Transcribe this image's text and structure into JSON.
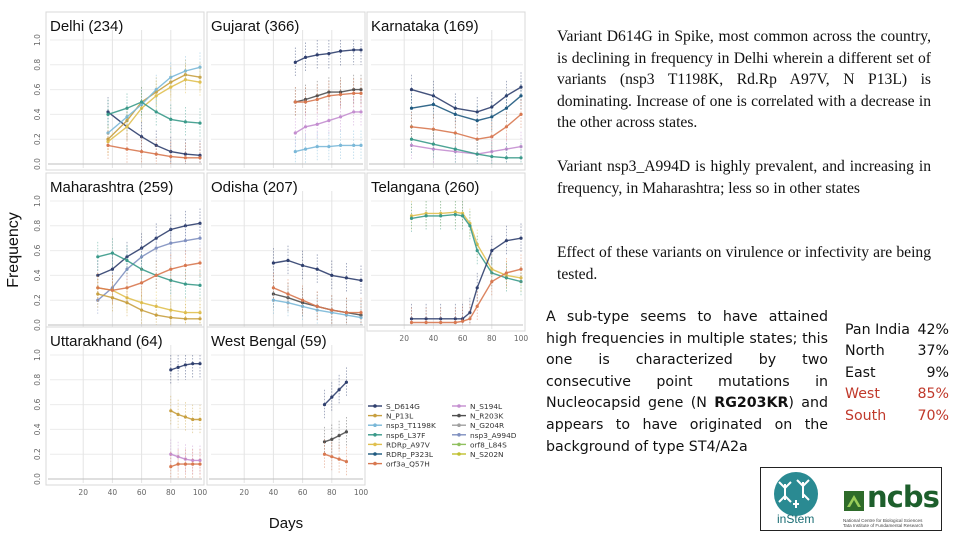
{
  "chart_data": {
    "type": "line",
    "ylabel": "Frequency",
    "xlabel": "Days",
    "ylim": [
      0,
      1.0
    ],
    "xlim": [
      0,
      100
    ],
    "yticks": [
      "0.0",
      "0.2",
      "0.4",
      "0.6",
      "0.8",
      "1.0"
    ],
    "xticks": [
      "20",
      "40",
      "60",
      "80",
      "100"
    ],
    "panels": [
      {
        "title": "Delhi (234)"
      },
      {
        "title": "Gujarat (366)"
      },
      {
        "title": "Karnataka (169)"
      },
      {
        "title": "Maharashtra (259)"
      },
      {
        "title": "Odisha (207)"
      },
      {
        "title": "Telangana (260)"
      },
      {
        "title": "Uttarakhand (64)"
      },
      {
        "title": "West Bengal (59)"
      }
    ],
    "legend_placement": "bottom-right of plot grid",
    "series": [
      {
        "name": "S_D614G",
        "color": "#2f3f6e"
      },
      {
        "name": "N_P13L",
        "color": "#c8a040"
      },
      {
        "name": "nsp3_T1198K",
        "color": "#7ab8d8"
      },
      {
        "name": "nsp6_L37F",
        "color": "#3a9a8a"
      },
      {
        "name": "RDRp_A97V",
        "color": "#e0c050"
      },
      {
        "name": "RDRp_P323L",
        "color": "#1f5a80"
      },
      {
        "name": "orf3a_Q57H",
        "color": "#d87850"
      },
      {
        "name": "N_S194L",
        "color": "#c48ed0"
      },
      {
        "name": "N_R203K",
        "color": "#505050"
      },
      {
        "name": "N_G204R",
        "color": "#a0a0a0"
      },
      {
        "name": "nsp3_A994D",
        "color": "#8090c0"
      },
      {
        "name": "orf8_L84S",
        "color": "#90c060"
      },
      {
        "name": "N_S202N",
        "color": "#c0c030"
      }
    ]
  },
  "text": {
    "p1": "Variant D614G in Spike, most common across the country, is declining in frequency in Delhi wherein a different set of variants (nsp3 T1198K, Rd.Rp A97V, N P13L) is dominating. Increase of one is correlated with a decrease in the other across states.",
    "p2": "Variant nsp3_A994D is highly prevalent, and increasing in frequency, in Maharashtra; less so in other states",
    "p3": "Effect of these variants on virulence or infectivity are being tested.",
    "subtype_a": "A sub-type seems to have attained high frequencies in multiple states; this one is characterized by two consecutive point mutations in Nucleocapsid gene (N ",
    "subtype_bold": "RG203KR",
    "subtype_b": ") and appears to have originated on the background of type ST4/A2a"
  },
  "regions": [
    {
      "name": "Pan India",
      "value": "42%",
      "color": "#111111"
    },
    {
      "name": "North",
      "value": "37%",
      "color": "#111111"
    },
    {
      "name": "East",
      "value": "9%",
      "color": "#111111"
    },
    {
      "name": "West",
      "value": "85%",
      "color": "#c0392b"
    },
    {
      "name": "South",
      "value": "70%",
      "color": "#c0392b"
    }
  ],
  "logos": {
    "instem": "inStem",
    "ncbs": "ncbs",
    "ncbs_sub1": "National Centre for Biological Sciences",
    "ncbs_sub2": "Tata Institute of Fundamental Research"
  }
}
